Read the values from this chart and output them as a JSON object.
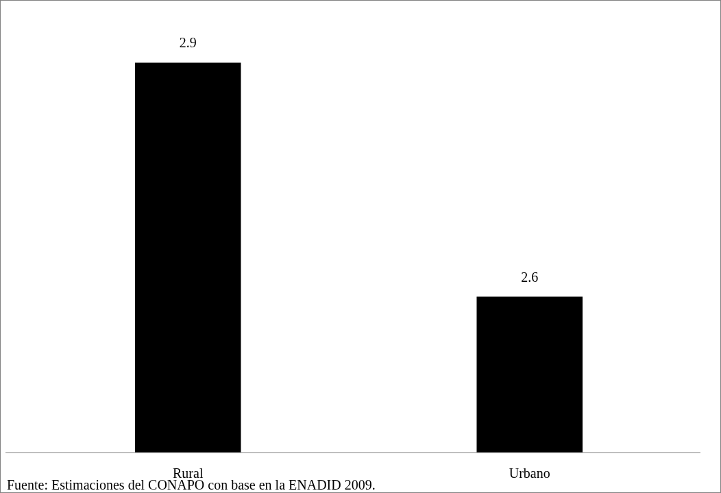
{
  "chart_data": {
    "type": "bar",
    "categories": [
      "Rural",
      "Urbano"
    ],
    "values": [
      2.9,
      2.6
    ],
    "color": "#000000",
    "ylim": [
      2.4,
      2.98
    ],
    "data_labels": true,
    "tick_labels": "x",
    "annotations": [
      "Fuente: Estimaciones del CONAPO con base en la ENADID 2009."
    ]
  }
}
